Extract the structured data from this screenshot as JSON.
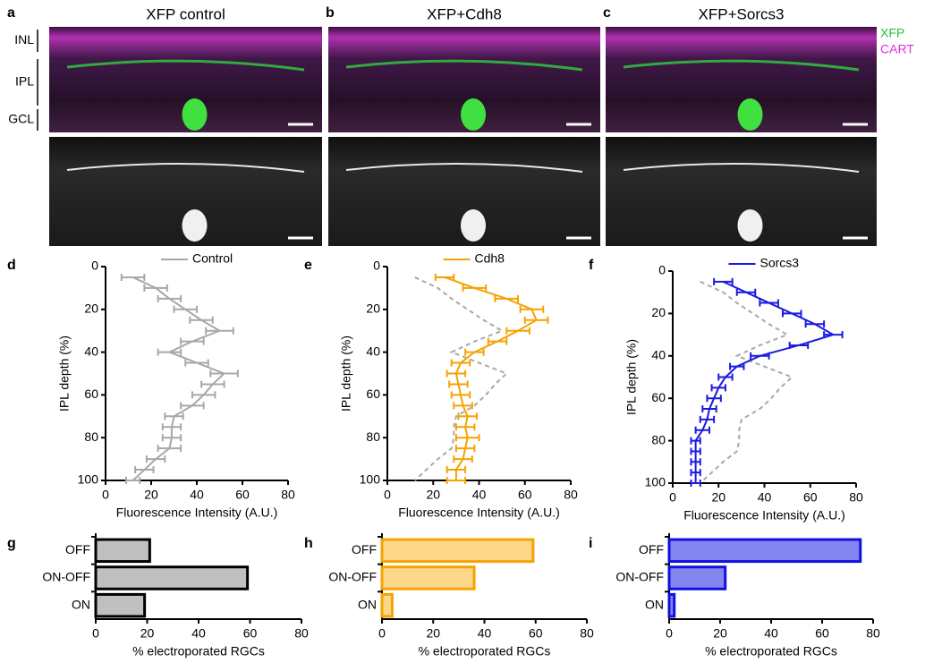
{
  "image_panels": [
    {
      "letter": "a",
      "title": "XFP control"
    },
    {
      "letter": "b",
      "title": "XFP+Cdh8"
    },
    {
      "letter": "c",
      "title": "XFP+Sorcs3"
    }
  ],
  "layer_labels": [
    "INL",
    "IPL",
    "GCL"
  ],
  "stain_legend": [
    {
      "name": "XFP",
      "color": "#22c040"
    },
    {
      "name": "CART",
      "color": "#e030e0"
    }
  ],
  "chart_data": [
    {
      "type": "line",
      "panel": "d",
      "xlabel": "Fluorescence Intensity (A.U.)",
      "ylabel": "IPL depth (%)",
      "xlim": [
        0,
        80
      ],
      "xticks": [
        0,
        20,
        40,
        60,
        80
      ],
      "ylim": [
        100,
        0
      ],
      "yticks": [
        0,
        20,
        40,
        60,
        80,
        100
      ],
      "y": [
        5,
        10,
        15,
        20,
        25,
        30,
        35,
        40,
        45,
        50,
        55,
        60,
        65,
        70,
        75,
        80,
        85,
        90,
        95,
        100
      ],
      "series": [
        {
          "name": "Control",
          "color": "#a8a8a8",
          "values": [
            12,
            22,
            28,
            35,
            42,
            50,
            38,
            28,
            40,
            52,
            47,
            43,
            38,
            30,
            29,
            29,
            28,
            22,
            17,
            12
          ],
          "errors": [
            5,
            5,
            5,
            5,
            5,
            6,
            5,
            5,
            5,
            6,
            5,
            5,
            5,
            4,
            4,
            4,
            5,
            4,
            4,
            3
          ]
        }
      ]
    },
    {
      "type": "line",
      "panel": "e",
      "xlabel": "Fluorescence Intensity (A.U.)",
      "ylabel": "IPL depth (%)",
      "xlim": [
        0,
        80
      ],
      "xticks": [
        0,
        20,
        40,
        60,
        80
      ],
      "ylim": [
        100,
        0
      ],
      "yticks": [
        0,
        20,
        40,
        60,
        80,
        100
      ],
      "y": [
        5,
        10,
        15,
        20,
        25,
        30,
        35,
        40,
        45,
        50,
        55,
        60,
        65,
        70,
        75,
        80,
        85,
        90,
        95,
        100
      ],
      "series": [
        {
          "color": "#a8a8a8",
          "dash": true,
          "values": [
            12,
            22,
            28,
            35,
            42,
            50,
            38,
            28,
            40,
            52,
            47,
            43,
            38,
            30,
            29,
            29,
            28,
            22,
            17,
            12
          ]
        },
        {
          "name": "Cdh8",
          "color": "#f5a300",
          "values": [
            25,
            38,
            52,
            63,
            65,
            57,
            48,
            38,
            32,
            30,
            31,
            32,
            33,
            35,
            34,
            35,
            34,
            33,
            30,
            30
          ],
          "errors": [
            4,
            5,
            5,
            5,
            5,
            5,
            4,
            4,
            4,
            4,
            4,
            4,
            4,
            4,
            4,
            5,
            4,
            4,
            4,
            4
          ]
        }
      ]
    },
    {
      "type": "line",
      "panel": "f",
      "xlabel": "Fluorescence Intensity (A.U.)",
      "ylabel": "IPL depth (%)",
      "xlim": [
        0,
        80
      ],
      "xticks": [
        0,
        20,
        40,
        60,
        80
      ],
      "ylim": [
        100,
        0
      ],
      "yticks": [
        0,
        20,
        40,
        60,
        80,
        100
      ],
      "y": [
        5,
        10,
        15,
        20,
        25,
        30,
        35,
        40,
        45,
        50,
        55,
        60,
        65,
        70,
        75,
        80,
        85,
        90,
        95,
        100
      ],
      "series": [
        {
          "color": "#a8a8a8",
          "dash": true,
          "values": [
            12,
            22,
            28,
            35,
            42,
            50,
            38,
            28,
            40,
            52,
            47,
            43,
            38,
            30,
            29,
            29,
            28,
            22,
            17,
            12
          ]
        },
        {
          "name": "Sorcs3",
          "color": "#1a1ae0",
          "values": [
            22,
            32,
            42,
            52,
            62,
            70,
            55,
            38,
            28,
            23,
            20,
            18,
            16,
            15,
            13,
            10,
            10,
            10,
            10,
            10
          ],
          "errors": [
            4,
            4,
            4,
            4,
            4,
            4,
            4,
            4,
            3,
            3,
            3,
            3,
            3,
            3,
            3,
            2,
            2,
            2,
            2,
            2
          ]
        }
      ]
    },
    {
      "type": "bar",
      "panel": "g",
      "xlabel": "% electroporated RGCs",
      "xlim": [
        0,
        80
      ],
      "xticks": [
        0,
        20,
        40,
        60,
        80
      ],
      "categories": [
        "OFF",
        "ON-OFF",
        "ON"
      ],
      "values": [
        21,
        59,
        19
      ],
      "color": "#c0c0c0",
      "edgecolor": "#000000"
    },
    {
      "type": "bar",
      "panel": "h",
      "xlabel": "% electroporated RGCs",
      "xlim": [
        0,
        80
      ],
      "xticks": [
        0,
        20,
        40,
        60,
        80
      ],
      "categories": [
        "OFF",
        "ON-OFF",
        "ON"
      ],
      "values": [
        59,
        36,
        4
      ],
      "color": "#fdd88a",
      "edgecolor": "#f5a300"
    },
    {
      "type": "bar",
      "panel": "i",
      "xlabel": "% electroporated RGCs",
      "xlim": [
        0,
        80
      ],
      "xticks": [
        0,
        20,
        40,
        60,
        80
      ],
      "categories": [
        "OFF",
        "ON-OFF",
        "ON"
      ],
      "values": [
        75,
        22,
        2
      ],
      "color": "#8585f0",
      "edgecolor": "#1010e0"
    }
  ]
}
